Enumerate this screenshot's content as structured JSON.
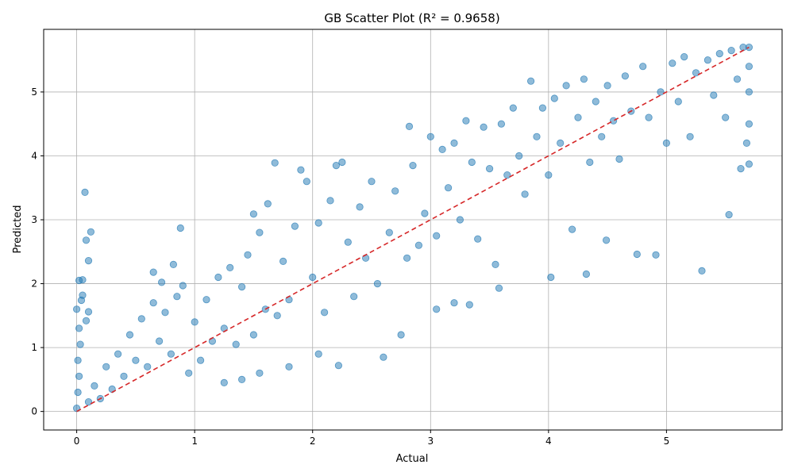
{
  "chart_data": {
    "type": "scatter",
    "title": "GB Scatter Plot (R² = 0.9658)",
    "xlabel": "Actual",
    "ylabel": "Predicted",
    "xlim": [
      -0.28,
      5.98
    ],
    "ylim": [
      -0.29,
      5.98
    ],
    "xticks": [
      0,
      1,
      2,
      3,
      4,
      5
    ],
    "yticks": [
      0,
      1,
      2,
      3,
      4,
      5
    ],
    "xtick_labels": [
      "0",
      "1",
      "2",
      "3",
      "4",
      "5"
    ],
    "ytick_labels": [
      "0",
      "1",
      "2",
      "3",
      "4",
      "5"
    ],
    "grid": true,
    "point_color": "#1f77b4",
    "point_alpha": 0.5,
    "reference_line": {
      "style": "dashed",
      "color": "#d62728",
      "x": [
        0,
        5.7
      ],
      "y": [
        0,
        5.7
      ]
    },
    "points": [
      [
        0.0,
        0.05
      ],
      [
        0.01,
        0.3
      ],
      [
        0.02,
        0.55
      ],
      [
        0.01,
        0.8
      ],
      [
        0.03,
        1.05
      ],
      [
        0.02,
        1.3
      ],
      [
        0.0,
        1.6
      ],
      [
        0.05,
        1.82
      ],
      [
        0.05,
        2.06
      ],
      [
        0.07,
        3.43
      ],
      [
        0.08,
        2.68
      ],
      [
        0.1,
        2.36
      ],
      [
        0.12,
        2.81
      ],
      [
        0.1,
        1.56
      ],
      [
        0.08,
        1.42
      ],
      [
        0.04,
        1.74
      ],
      [
        0.02,
        2.05
      ],
      [
        0.1,
        0.15
      ],
      [
        0.15,
        0.4
      ],
      [
        0.2,
        0.2
      ],
      [
        0.25,
        0.7
      ],
      [
        0.3,
        0.35
      ],
      [
        0.35,
        0.9
      ],
      [
        0.4,
        0.55
      ],
      [
        0.45,
        1.2
      ],
      [
        0.5,
        0.8
      ],
      [
        0.55,
        1.45
      ],
      [
        0.6,
        0.7
      ],
      [
        0.65,
        1.7
      ],
      [
        0.7,
        1.1
      ],
      [
        0.75,
        1.55
      ],
      [
        0.8,
        0.9
      ],
      [
        0.85,
        1.8
      ],
      [
        0.88,
        2.87
      ],
      [
        0.82,
        2.3
      ],
      [
        0.65,
        2.18
      ],
      [
        0.72,
        2.02
      ],
      [
        0.9,
        1.97
      ],
      [
        0.95,
        0.6
      ],
      [
        1.0,
        1.4
      ],
      [
        1.05,
        0.8
      ],
      [
        1.1,
        1.75
      ],
      [
        1.15,
        1.1
      ],
      [
        1.2,
        2.1
      ],
      [
        1.25,
        1.3
      ],
      [
        1.3,
        2.25
      ],
      [
        1.35,
        1.05
      ],
      [
        1.4,
        1.95
      ],
      [
        1.45,
        2.45
      ],
      [
        1.5,
        1.2
      ],
      [
        1.55,
        2.8
      ],
      [
        1.6,
        1.6
      ],
      [
        1.62,
        3.25
      ],
      [
        1.68,
        3.89
      ],
      [
        1.5,
        3.09
      ],
      [
        1.4,
        0.5
      ],
      [
        1.55,
        0.6
      ],
      [
        1.25,
        0.45
      ],
      [
        1.7,
        1.5
      ],
      [
        1.75,
        2.35
      ],
      [
        1.8,
        1.75
      ],
      [
        1.85,
        2.9
      ],
      [
        1.9,
        3.78
      ],
      [
        1.95,
        3.6
      ],
      [
        2.0,
        2.1
      ],
      [
        2.05,
        2.95
      ],
      [
        2.1,
        1.55
      ],
      [
        2.15,
        3.3
      ],
      [
        2.2,
        3.85
      ],
      [
        2.25,
        3.9
      ],
      [
        2.3,
        2.65
      ],
      [
        2.35,
        1.8
      ],
      [
        2.4,
        3.2
      ],
      [
        2.45,
        2.4
      ],
      [
        2.5,
        3.6
      ],
      [
        2.55,
        2.0
      ],
      [
        2.6,
        0.85
      ],
      [
        2.22,
        0.72
      ],
      [
        2.05,
        0.9
      ],
      [
        1.8,
        0.7
      ],
      [
        2.65,
        2.8
      ],
      [
        2.7,
        3.45
      ],
      [
        2.75,
        1.2
      ],
      [
        2.8,
        2.4
      ],
      [
        2.82,
        4.46
      ],
      [
        2.85,
        3.85
      ],
      [
        2.9,
        2.6
      ],
      [
        2.95,
        3.1
      ],
      [
        3.0,
        4.3
      ],
      [
        3.05,
        2.75
      ],
      [
        3.1,
        4.1
      ],
      [
        3.15,
        3.5
      ],
      [
        3.2,
        4.2
      ],
      [
        3.25,
        3.0
      ],
      [
        3.3,
        4.55
      ],
      [
        3.35,
        3.9
      ],
      [
        3.4,
        2.7
      ],
      [
        3.45,
        4.45
      ],
      [
        3.5,
        3.8
      ],
      [
        3.55,
        2.3
      ],
      [
        3.6,
        4.5
      ],
      [
        3.65,
        3.7
      ],
      [
        3.7,
        4.75
      ],
      [
        3.33,
        1.67
      ],
      [
        3.2,
        1.7
      ],
      [
        3.05,
        1.6
      ],
      [
        3.58,
        1.93
      ],
      [
        3.75,
        4.0
      ],
      [
        3.8,
        3.4
      ],
      [
        3.85,
        5.17
      ],
      [
        3.9,
        4.3
      ],
      [
        3.95,
        4.75
      ],
      [
        4.0,
        3.7
      ],
      [
        4.02,
        2.1
      ],
      [
        4.05,
        4.9
      ],
      [
        4.1,
        4.2
      ],
      [
        4.15,
        5.1
      ],
      [
        4.2,
        2.85
      ],
      [
        4.25,
        4.6
      ],
      [
        4.3,
        5.2
      ],
      [
        4.32,
        2.15
      ],
      [
        4.35,
        3.9
      ],
      [
        4.4,
        4.85
      ],
      [
        4.45,
        4.3
      ],
      [
        4.5,
        5.1
      ],
      [
        4.49,
        2.68
      ],
      [
        4.55,
        4.55
      ],
      [
        4.6,
        3.95
      ],
      [
        4.65,
        5.25
      ],
      [
        4.7,
        4.7
      ],
      [
        4.75,
        2.46
      ],
      [
        4.8,
        5.4
      ],
      [
        4.85,
        4.6
      ],
      [
        4.91,
        2.45
      ],
      [
        4.95,
        5.0
      ],
      [
        5.0,
        4.2
      ],
      [
        5.05,
        5.45
      ],
      [
        5.1,
        4.85
      ],
      [
        5.15,
        5.55
      ],
      [
        5.2,
        4.3
      ],
      [
        5.25,
        5.3
      ],
      [
        5.3,
        2.2
      ],
      [
        5.35,
        5.5
      ],
      [
        5.4,
        4.95
      ],
      [
        5.45,
        5.6
      ],
      [
        5.5,
        4.6
      ],
      [
        5.53,
        3.08
      ],
      [
        5.55,
        5.65
      ],
      [
        5.6,
        5.2
      ],
      [
        5.63,
        3.8
      ],
      [
        5.65,
        5.7
      ],
      [
        5.68,
        4.2
      ],
      [
        5.7,
        3.87
      ],
      [
        5.7,
        4.5
      ],
      [
        5.7,
        5.0
      ],
      [
        5.7,
        5.4
      ],
      [
        5.7,
        5.7
      ]
    ]
  }
}
